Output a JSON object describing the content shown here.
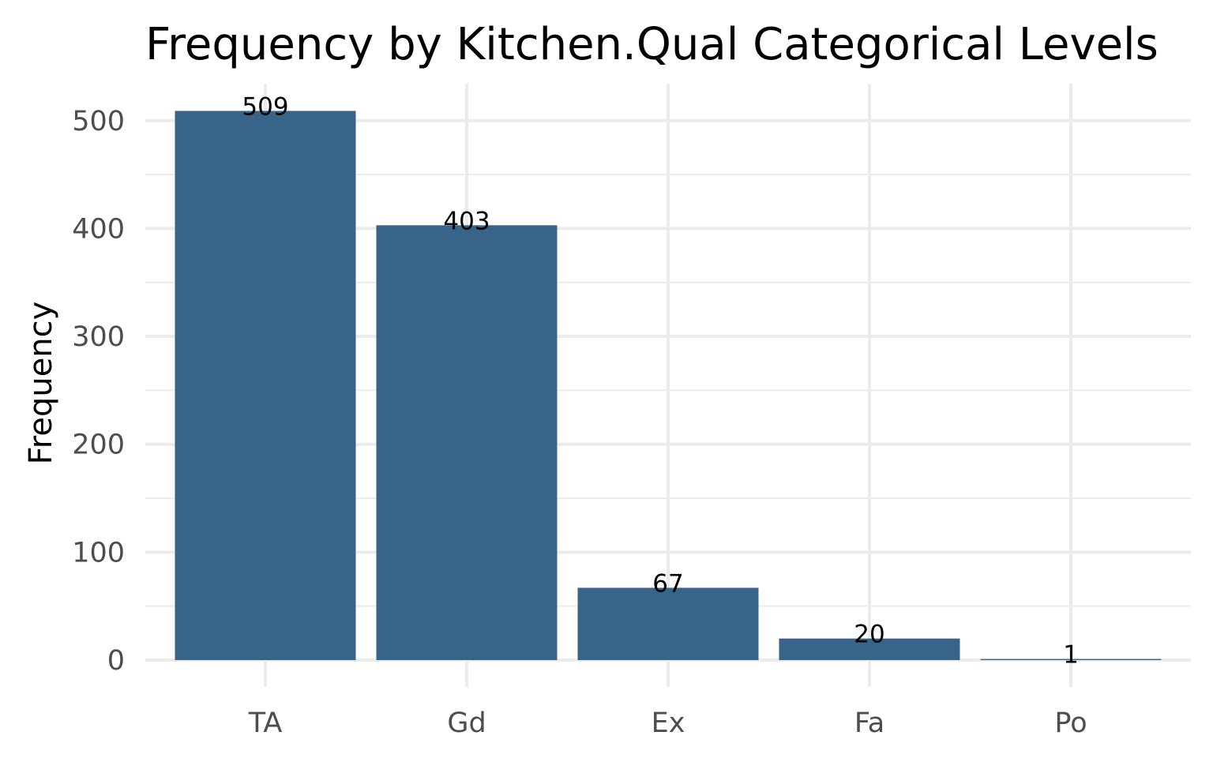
{
  "chart_data": {
    "type": "bar",
    "title": "Frequency by Kitchen.Qual Categorical Levels",
    "xlabel": "",
    "ylabel": "Frequency",
    "categories": [
      "TA",
      "Gd",
      "Ex",
      "Fa",
      "Po"
    ],
    "values": [
      509,
      403,
      67,
      20,
      1
    ],
    "data_labels": [
      "509",
      "403",
      "67",
      "20",
      "1"
    ],
    "ylim": [
      0,
      520
    ],
    "y_ticks": [
      0,
      100,
      200,
      300,
      400,
      500
    ],
    "y_tick_labels": [
      "0",
      "100",
      "200",
      "300",
      "400",
      "500"
    ],
    "y_minor_ticks": [
      50,
      150,
      250,
      350,
      450
    ],
    "grid": true,
    "legend": "none",
    "colors": {
      "bar": "#386489",
      "grid": "#ebebeb",
      "tick_label": "#4d4d4d",
      "text": "#000000",
      "background": "#ffffff"
    }
  }
}
